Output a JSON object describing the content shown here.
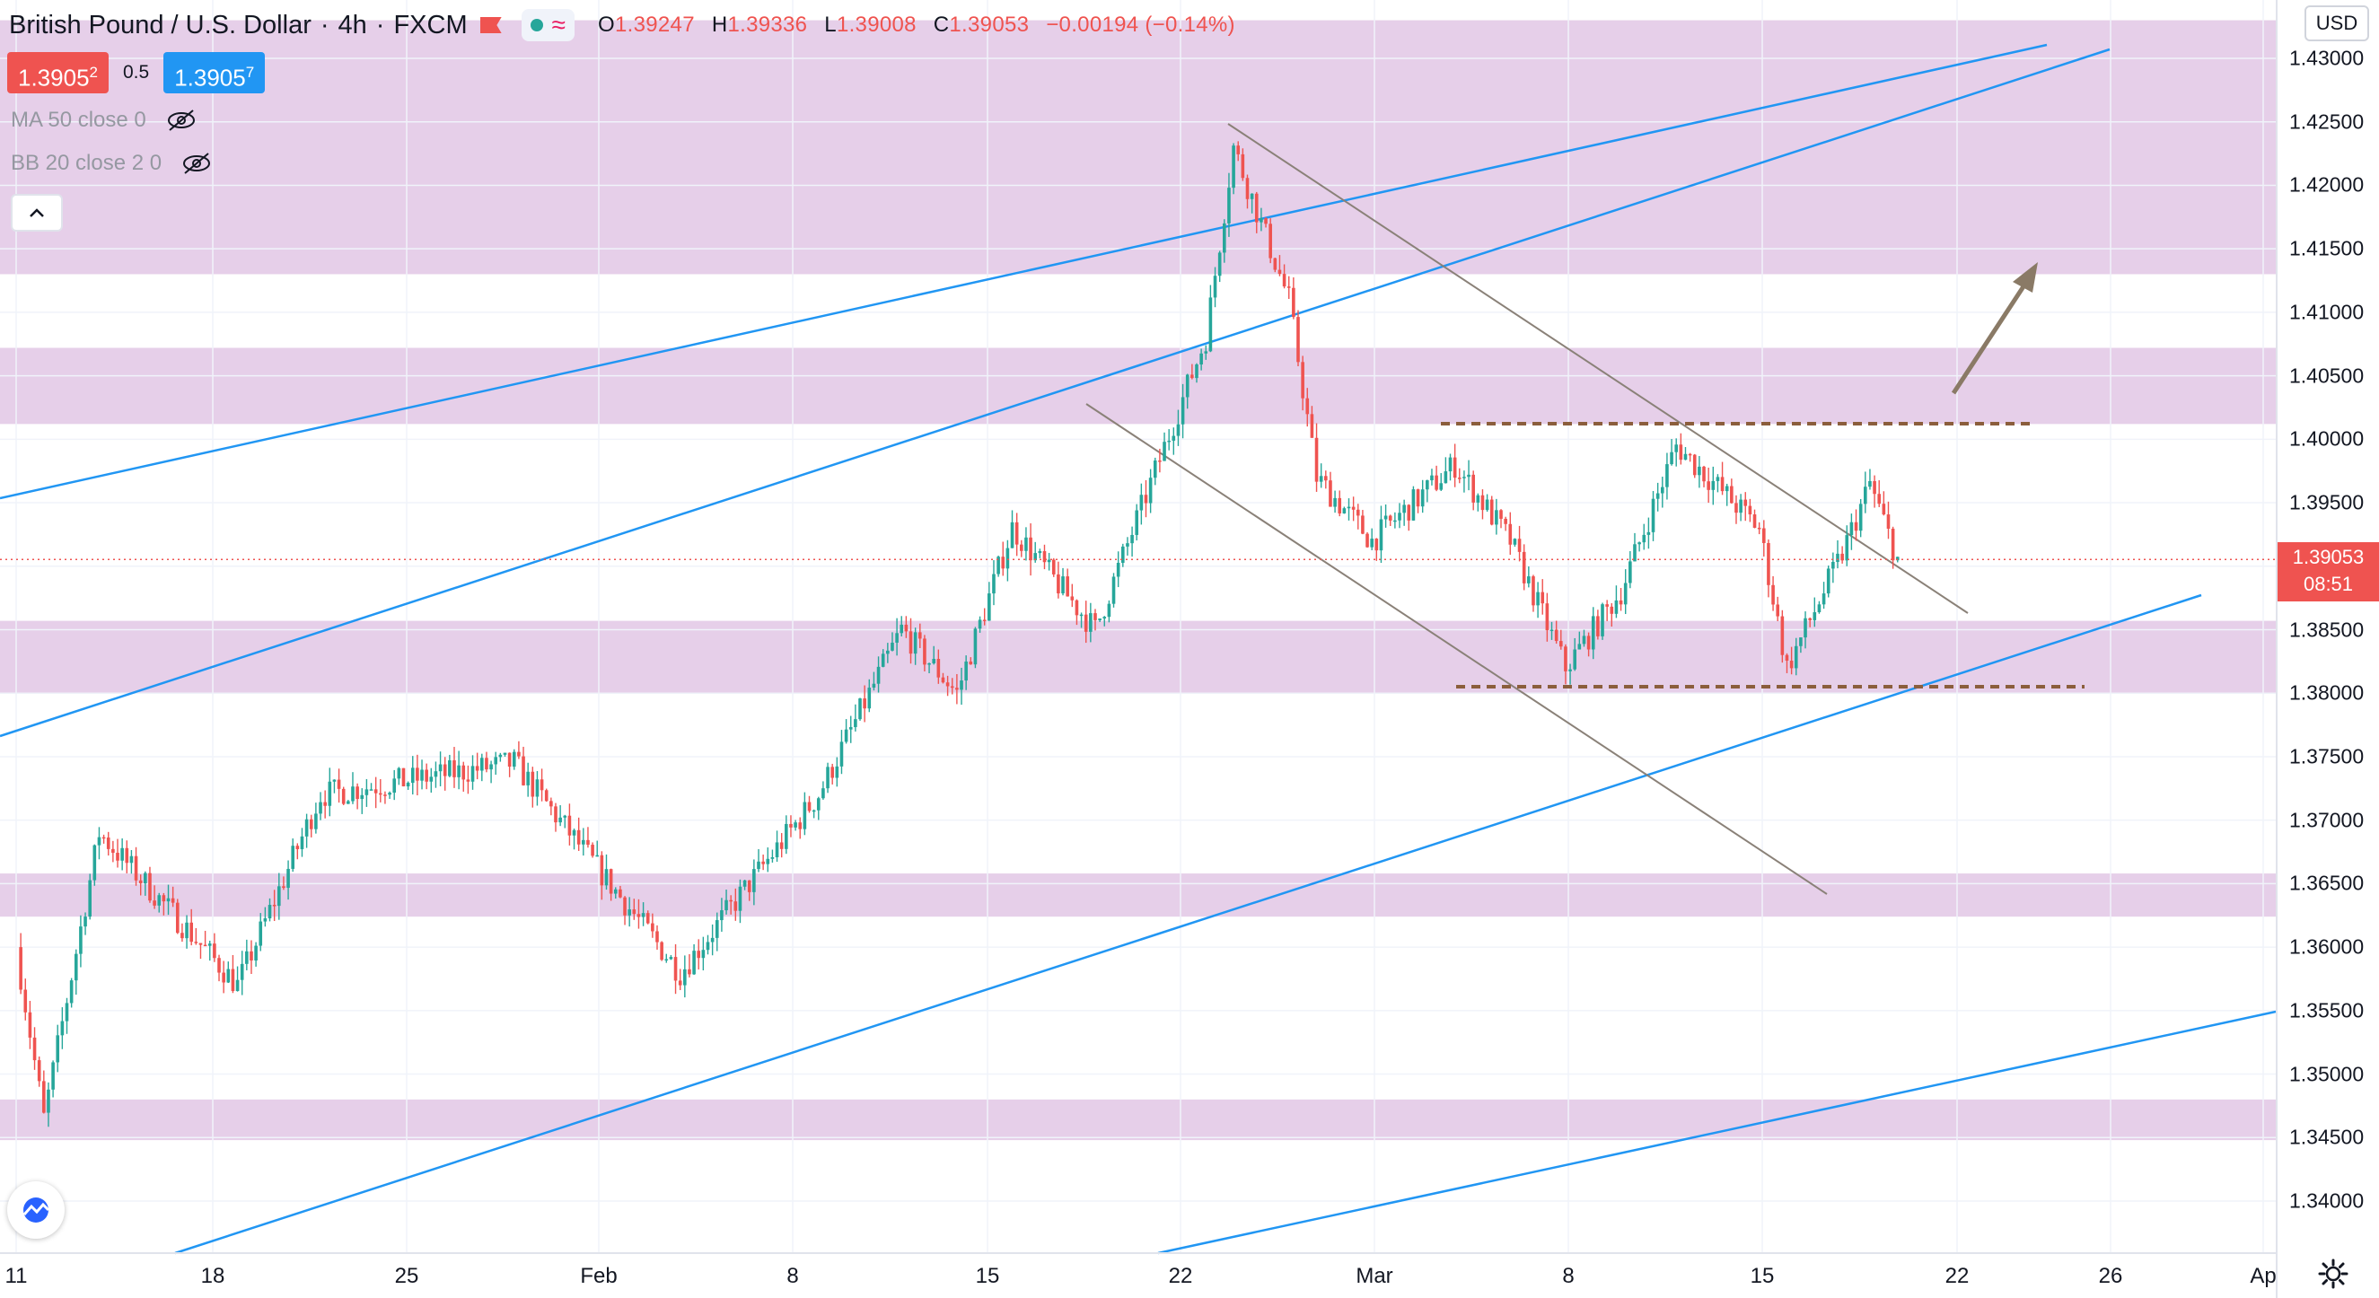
{
  "header": {
    "symbol": "British Pound / U.S. Dollar",
    "interval": "4h",
    "exchange": "FXCM",
    "ohlc": [
      {
        "k": "O",
        "v": "1.39247"
      },
      {
        "k": "H",
        "v": "1.39336"
      },
      {
        "k": "L",
        "v": "1.39008"
      },
      {
        "k": "C",
        "v": "1.39053"
      }
    ],
    "change": "−0.00194 (−0.14%)"
  },
  "quote": {
    "sell_main": "1.3905",
    "sell_sup": "2",
    "spread": "0.5",
    "buy_main": "1.3905",
    "buy_sup": "7"
  },
  "indicators": [
    {
      "label": "MA 50 close 0"
    },
    {
      "label": "BB 20 close 2 0"
    }
  ],
  "price_scale": {
    "currency": "USD",
    "current_price": "1.39053",
    "countdown": "08:51",
    "ticks": [
      "1.43000",
      "1.42500",
      "1.42000",
      "1.41500",
      "1.41000",
      "1.40500",
      "1.40000",
      "1.39500",
      "1.39000",
      "1.38500",
      "1.38000",
      "1.37500",
      "1.37000",
      "1.36500",
      "1.36000",
      "1.35500",
      "1.35000",
      "1.34500",
      "1.34000"
    ]
  },
  "time_scale": {
    "ticks": [
      "11",
      "18",
      "25",
      "Feb",
      "8",
      "15",
      "22",
      "Mar",
      "8",
      "15",
      "22",
      "26",
      "Ap"
    ]
  },
  "colors": {
    "up": "#26a69a",
    "down": "#ef5350",
    "zone": "#e6cfe9",
    "channel": "#2196f3",
    "trendline": "#8a8178",
    "level": "#8b5e3c",
    "arrow": "#8a7a66"
  },
  "icons": [
    "status-dot-icon",
    "wave-icon",
    "eye-off-icon",
    "chevron-up-icon",
    "tradingview-logo-icon",
    "gear-icon"
  ],
  "chart_data": {
    "type": "candlestick",
    "title": "British Pound / U.S. Dollar",
    "interval": "4h",
    "ylim": [
      1.3375,
      1.4325
    ],
    "x_ticks": [
      "11",
      "18",
      "25",
      "Feb",
      "8",
      "15",
      "22",
      "Mar",
      "8",
      "15",
      "22",
      "26",
      "Ap"
    ],
    "support_resistance_zones": [
      {
        "low": 1.413,
        "high": 1.433
      },
      {
        "low": 1.4012,
        "high": 1.4072
      },
      {
        "low": 1.38,
        "high": 1.3857
      },
      {
        "low": 1.3624,
        "high": 1.3658
      },
      {
        "low": 1.3448,
        "high": 1.348
      }
    ],
    "horizontal_levels": [
      {
        "price": 1.401,
        "style": "dashed"
      },
      {
        "price": 1.3806,
        "style": "dashed"
      }
    ],
    "current_price_line": 1.39053,
    "price_path_keypoints": [
      {
        "date": "Jan 11",
        "price": 1.36
      },
      {
        "date": "Jan 12",
        "price": 1.3465
      },
      {
        "date": "Jan 14",
        "price": 1.369
      },
      {
        "date": "Jan 19",
        "price": 1.357
      },
      {
        "date": "Jan 22",
        "price": 1.372
      },
      {
        "date": "Jan 29",
        "price": 1.3745
      },
      {
        "date": "Feb 4",
        "price": 1.358
      },
      {
        "date": "Feb 9",
        "price": 1.372
      },
      {
        "date": "Feb 12",
        "price": 1.385
      },
      {
        "date": "Feb 14",
        "price": 1.38
      },
      {
        "date": "Feb 16",
        "price": 1.393
      },
      {
        "date": "Feb 19",
        "price": 1.385
      },
      {
        "date": "Feb 23",
        "price": 1.408
      },
      {
        "date": "Feb 24",
        "price": 1.423
      },
      {
        "date": "Feb 26",
        "price": 1.411
      },
      {
        "date": "Feb 27",
        "price": 1.397
      },
      {
        "date": "Mar 1",
        "price": 1.392
      },
      {
        "date": "Mar 4",
        "price": 1.398
      },
      {
        "date": "Mar 6",
        "price": 1.392
      },
      {
        "date": "Mar 8",
        "price": 1.382
      },
      {
        "date": "Mar 10",
        "price": 1.388
      },
      {
        "date": "Mar 12",
        "price": 1.3995
      },
      {
        "date": "Mar 15",
        "price": 1.393
      },
      {
        "date": "Mar 16",
        "price": 1.382
      },
      {
        "date": "Mar 18",
        "price": 1.391
      },
      {
        "date": "Mar 19",
        "price": 1.3965
      },
      {
        "date": "Mar 20",
        "price": 1.39053
      }
    ]
  }
}
